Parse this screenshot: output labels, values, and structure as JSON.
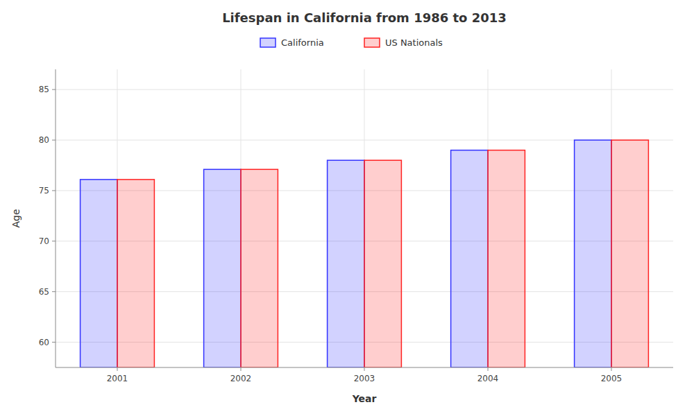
{
  "chart_data": {
    "type": "bar",
    "title": "Lifespan in California from 1986 to 2013",
    "x_label": "Year",
    "y_label": "Age",
    "categories": [
      "2001",
      "2002",
      "2003",
      "2004",
      "2005"
    ],
    "series": [
      {
        "name": "California",
        "color": "#3333ff",
        "values": [
          76.1,
          77.1,
          78.0,
          79.0,
          80.0
        ]
      },
      {
        "name": "US Nationals",
        "color": "#ff2222",
        "values": [
          76.1,
          77.1,
          78.0,
          79.0,
          80.0
        ]
      }
    ],
    "ylim": [
      57.5,
      87
    ],
    "yticks": [
      60,
      65,
      70,
      75,
      80,
      85
    ],
    "grid": true,
    "legend": "top"
  }
}
